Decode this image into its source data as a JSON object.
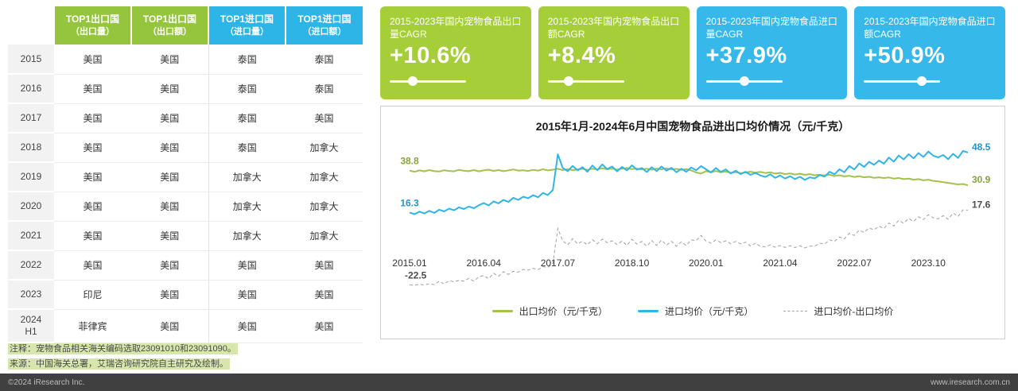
{
  "table": {
    "headers": [
      {
        "line1": "TOP1出口国",
        "line2": "（出口量）",
        "type": "export"
      },
      {
        "line1": "TOP1出口国",
        "line2": "（出口额）",
        "type": "export"
      },
      {
        "line1": "TOP1进口国",
        "line2": "（进口量）",
        "type": "import"
      },
      {
        "line1": "TOP1进口国",
        "line2": "（进口额）",
        "type": "import"
      }
    ],
    "rows": [
      {
        "year": "2015",
        "cells": [
          "美国",
          "美国",
          "泰国",
          "泰国"
        ]
      },
      {
        "year": "2016",
        "cells": [
          "美国",
          "美国",
          "泰国",
          "泰国"
        ]
      },
      {
        "year": "2017",
        "cells": [
          "美国",
          "美国",
          "泰国",
          "美国"
        ]
      },
      {
        "year": "2018",
        "cells": [
          "美国",
          "美国",
          "泰国",
          "加拿大"
        ]
      },
      {
        "year": "2019",
        "cells": [
          "美国",
          "美国",
          "加拿大",
          "加拿大"
        ]
      },
      {
        "year": "2020",
        "cells": [
          "美国",
          "美国",
          "加拿大",
          "加拿大"
        ]
      },
      {
        "year": "2021",
        "cells": [
          "美国",
          "美国",
          "加拿大",
          "加拿大"
        ]
      },
      {
        "year": "2022",
        "cells": [
          "美国",
          "美国",
          "美国",
          "美国"
        ]
      },
      {
        "year": "2023",
        "cells": [
          "印尼",
          "美国",
          "美国",
          "美国"
        ]
      },
      {
        "year": "2024\nH1",
        "cells": [
          "菲律宾",
          "美国",
          "美国",
          "美国"
        ]
      }
    ]
  },
  "cards": [
    {
      "label": "2015-2023年国内宠物食品出口量CAGR",
      "value": "+10.6%",
      "theme": "green",
      "knob_percent": 30
    },
    {
      "label": "2015-2023年国内宠物食品出口额CAGR",
      "value": "+8.4%",
      "theme": "green",
      "knob_percent": 27
    },
    {
      "label": "2015-2023年国内宠物食品进口量CAGR",
      "value": "+37.9%",
      "theme": "blue",
      "knob_percent": 50
    },
    {
      "label": "2015-2023年国内宠物食品进口额CAGR",
      "value": "+50.9%",
      "theme": "blue",
      "knob_percent": 76
    }
  ],
  "chart_data": {
    "type": "line",
    "title": "2015年1月-2024年6月中国宠物食品进出口均价情况（元/千克）",
    "x_start": "2015.01",
    "x_end": "2024.06",
    "x_ticks": [
      {
        "label": "2015.01",
        "index": 0
      },
      {
        "label": "2016.04",
        "index": 15
      },
      {
        "label": "2017.07",
        "index": 30
      },
      {
        "label": "2018.10",
        "index": 45
      },
      {
        "label": "2020.01",
        "index": 60
      },
      {
        "label": "2021.04",
        "index": 75
      },
      {
        "label": "2022.07",
        "index": 90
      },
      {
        "label": "2023.10",
        "index": 105
      }
    ],
    "y_unit": "元/千克",
    "ylim": [
      -27,
      54
    ],
    "grid": false,
    "legend_position": "bottom",
    "series": [
      {
        "name": "出口均价（元/千克）",
        "color": "#a2c24d",
        "label_color": "#86a53a",
        "style": "solid",
        "start_label": "38.8",
        "end_label": "30.9",
        "values": [
          38.8,
          38.2,
          38.9,
          38.4,
          39.1,
          38.5,
          38.3,
          39.0,
          38.6,
          38.4,
          39.2,
          38.7,
          38.5,
          39.1,
          38.4,
          38.9,
          39.3,
          38.6,
          39.1,
          38.5,
          38.9,
          39.4,
          38.8,
          39.0,
          38.6,
          39.2,
          38.8,
          39.5,
          38.9,
          39.3,
          39.8,
          39.1,
          39.6,
          39.0,
          39.4,
          39.7,
          39.2,
          39.8,
          39.4,
          40.1,
          39.5,
          39.9,
          39.3,
          39.8,
          40.2,
          39.6,
          39.9,
          39.4,
          39.8,
          39.3,
          39.9,
          39.5,
          40.0,
          39.4,
          39.7,
          39.2,
          39.6,
          38.9,
          37.8,
          37.2,
          38.5,
          37.9,
          38.6,
          37.9,
          38.3,
          37.6,
          38.0,
          37.4,
          37.8,
          38.2,
          37.7,
          38.1,
          37.5,
          37.9,
          37.2,
          37.6,
          36.9,
          37.3,
          36.7,
          37.1,
          36.5,
          36.9,
          36.3,
          36.6,
          36.2,
          36.6,
          35.9,
          36.3,
          35.7,
          36.0,
          35.4,
          35.8,
          35.2,
          35.5,
          34.9,
          35.2,
          34.8,
          35.1,
          34.5,
          34.8,
          34.2,
          34.5,
          33.9,
          34.2,
          33.6,
          33.9,
          33.3,
          33.0,
          32.6,
          32.2,
          31.8,
          31.4,
          31.6,
          30.9
        ]
      },
      {
        "name": "进口均价（元/千克）",
        "color": "#2fb5e9",
        "label_color": "#2296cc",
        "style": "solid",
        "start_label": "16.3",
        "end_label": "48.5",
        "values": [
          16.3,
          15.4,
          16.8,
          15.8,
          17.2,
          16.1,
          17.8,
          16.9,
          18.4,
          17.5,
          19.1,
          18.2,
          19.5,
          18.6,
          20.2,
          21.4,
          20.1,
          22.3,
          21.2,
          23.1,
          22.0,
          24.2,
          23.1,
          24.8,
          24.0,
          25.6,
          24.5,
          26.8,
          25.7,
          28.4,
          47.5,
          40.2,
          38.5,
          41.3,
          38.9,
          40.6,
          38.2,
          41.5,
          39.0,
          42.1,
          39.6,
          41.0,
          38.4,
          40.8,
          38.9,
          41.6,
          39.3,
          40.2,
          38.0,
          40.6,
          38.5,
          41.0,
          38.8,
          40.3,
          37.9,
          39.8,
          38.2,
          40.5,
          39.0,
          41.2,
          39.5,
          37.8,
          40.2,
          38.1,
          39.4,
          37.2,
          38.8,
          36.9,
          38.2,
          36.5,
          37.6,
          36.2,
          35.4,
          36.8,
          34.9,
          36.2,
          34.5,
          35.8,
          34.2,
          35.5,
          33.8,
          35.2,
          34.6,
          36.4,
          35.6,
          38.2,
          36.8,
          39.5,
          37.9,
          41.2,
          39.4,
          42.6,
          40.8,
          43.5,
          41.9,
          44.2,
          42.5,
          45.8,
          43.6,
          46.9,
          44.8,
          47.6,
          45.4,
          48.2,
          46.1,
          49.0,
          46.8,
          45.9,
          47.2,
          44.9,
          47.8,
          45.6,
          49.3,
          48.5
        ]
      },
      {
        "name": "进口均价-出口均价",
        "color": "#a0a0a0",
        "label_color": "#4d4d4d",
        "style": "dashed",
        "start_label": "-22.5",
        "end_label": "17.6",
        "derived": "import_minus_export"
      }
    ]
  },
  "notes": [
    "注释：宠物食品相关海关编码选取23091010和23091090。",
    "来源：中国海关总署，艾瑞咨询研究院自主研究及绘制。"
  ],
  "footer": {
    "copyright": "©2024 iResearch Inc.",
    "website": "www.iresearch.com.cn"
  },
  "colors": {
    "table_export_green": "#94c53c",
    "table_import_blue": "#2eb5e8",
    "card_green": "#a6ce39",
    "card_blue": "#36b9ea",
    "export_line": "#a2c24d",
    "import_line": "#2fb5e9",
    "diff_line": "#a0a0a0",
    "footer_bar": "#404040"
  }
}
